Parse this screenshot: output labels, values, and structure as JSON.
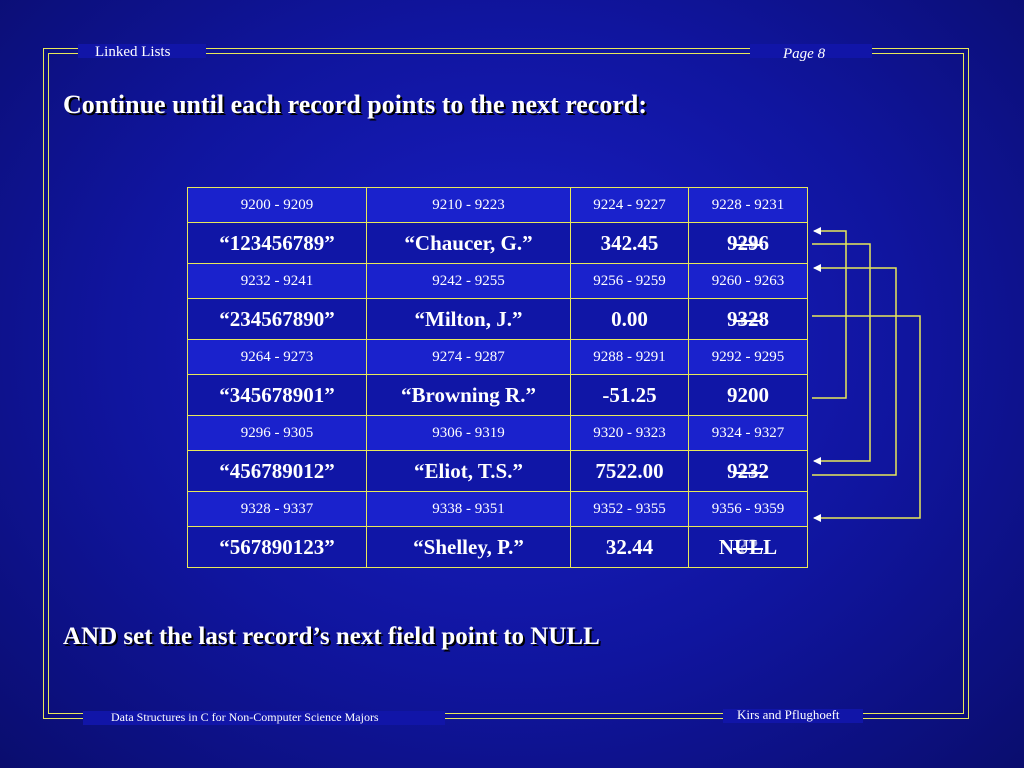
{
  "header": {
    "section": "Linked Lists",
    "page": "Page 8"
  },
  "title": "Continue until each record points to the next record:",
  "note": "AND set the last record’s next field point to NULL",
  "footer": {
    "left": "Data Structures in C for Non-Computer Science Majors",
    "right": "Kirs and Pflughoeft"
  },
  "records": [
    {
      "addr": [
        "9200 - 9209",
        "9210 - 9223",
        "9224 - 9227",
        "9228 - 9231"
      ],
      "vals": [
        "“123456789”",
        "“Chaucer, G.”",
        "342.45"
      ],
      "next": "9296",
      "next_overlay": "??"
    },
    {
      "addr": [
        "9232 - 9241",
        "9242 - 9255",
        "9256 - 9259",
        "9260 - 9263"
      ],
      "vals": [
        "“234567890”",
        "“Milton, J.”",
        "0.00"
      ],
      "next": "9328",
      "next_overlay": "??"
    },
    {
      "addr": [
        "9264 - 9273",
        "9274 - 9287",
        "9288 - 9291",
        "9292 - 9295"
      ],
      "vals": [
        "“345678901”",
        "“Browning R.”",
        "-51.25"
      ],
      "next": "9200",
      "next_overlay": ""
    },
    {
      "addr": [
        "9296 - 9305",
        "9306 - 9319",
        "9320 - 9323",
        "9324 - 9327"
      ],
      "vals": [
        "“456789012”",
        "“Eliot, T.S.”",
        "7522.00"
      ],
      "next": "9232",
      "next_overlay": "??"
    },
    {
      "addr": [
        "9328 - 9337",
        "9338 - 9351",
        "9352 - 9355",
        "9356 - 9359"
      ],
      "vals": [
        "“567890123”",
        "“Shelley, P.”",
        "32.44"
      ],
      "next": "NULL",
      "next_overlay": "??"
    }
  ],
  "colors": {
    "accent": "#e8e85a",
    "background": "#1115a8"
  }
}
